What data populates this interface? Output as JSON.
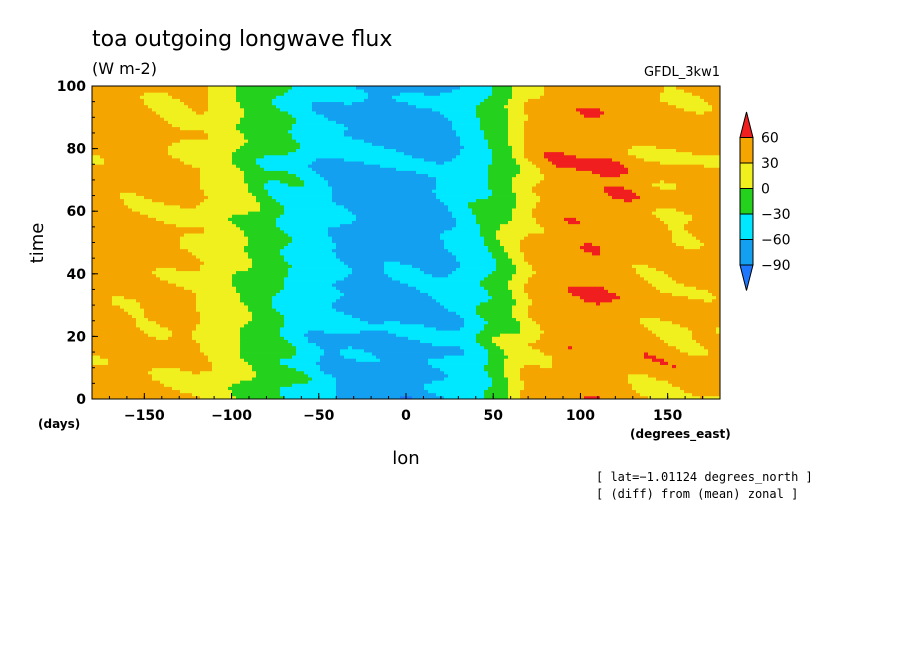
{
  "chart_data": {
    "type": "heatmap",
    "title": "toa outgoing longwave flux",
    "units": "(W m-2)",
    "model": "GFDL_3kw1",
    "xlabel": "lon",
    "ylabel": "time",
    "x_units": "(degrees_east)",
    "y_units": "(days)",
    "xlim": [
      -180,
      180
    ],
    "ylim": [
      0,
      100
    ],
    "x_ticks": [
      -150,
      -100,
      -50,
      0,
      50,
      100,
      150
    ],
    "x_tick_labels": [
      "−150",
      "−100",
      "−50",
      "0",
      "50",
      "100",
      "150"
    ],
    "y_ticks": [
      0,
      20,
      40,
      60,
      80,
      100
    ],
    "y_tick_labels": [
      "0",
      "20",
      "40",
      "60",
      "80",
      "100"
    ],
    "colorbar": {
      "levels": [
        -90,
        -60,
        -30,
        0,
        30,
        60
      ],
      "labels": [
        "−90",
        "−60",
        "−30",
        "0",
        "30",
        "60"
      ],
      "colors": [
        "#1e78ff",
        "#14a0f0",
        "#00e8ff",
        "#24d21e",
        "#f0f01e",
        "#f5a500",
        "#f01e1e"
      ]
    },
    "zonal_profile": {
      "description_lon": [
        -180,
        -150,
        -120,
        -100,
        -80,
        -60,
        -40,
        -20,
        0,
        20,
        40,
        60,
        70,
        90,
        110,
        130,
        150,
        180
      ],
      "typical_value": [
        40,
        40,
        30,
        10,
        -20,
        -40,
        -60,
        -70,
        -70,
        -65,
        -40,
        0,
        30,
        50,
        55,
        45,
        35,
        38
      ]
    },
    "notes": [
      "[ lat=−1.01124 degrees_north ]",
      "[ (diff) from (mean) zonal ]"
    ]
  }
}
